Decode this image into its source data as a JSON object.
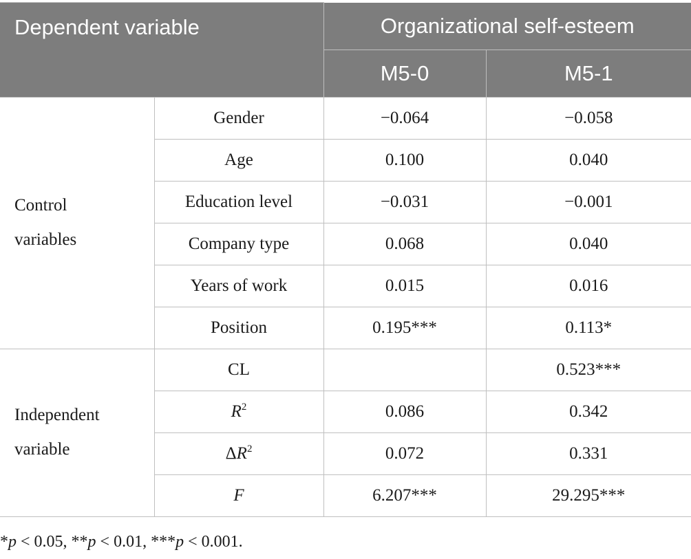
{
  "table": {
    "header": {
      "dependent_label": "Dependent variable",
      "outcome_label": "Organizational self-esteem",
      "model_0": "M5-0",
      "model_1": "M5-1"
    },
    "groups": {
      "control_line1": "Control",
      "control_line2": "variables",
      "independent_line1": "Independent",
      "independent_line2": "variable"
    },
    "rows": [
      {
        "label": "Gender",
        "m0": "−0.064",
        "m1": "−0.058"
      },
      {
        "label": "Age",
        "m0": "0.100",
        "m1": "0.040"
      },
      {
        "label": "Education level",
        "m0": "−0.031",
        "m1": "−0.001"
      },
      {
        "label": "Company type",
        "m0": "0.068",
        "m1": "0.040"
      },
      {
        "label": "Years of work",
        "m0": "0.015",
        "m1": "0.016"
      },
      {
        "label": "Position",
        "m0": "0.195***",
        "m1": "0.113*"
      },
      {
        "label": "CL",
        "m0": "",
        "m1": "0.523***"
      },
      {
        "label_main": "R",
        "label_sup": "2",
        "m0": "0.086",
        "m1": "0.342"
      },
      {
        "label_prefix": "Δ",
        "label_main": "R",
        "label_sup": "2",
        "m0": "0.072",
        "m1": "0.331"
      },
      {
        "label_main": "F",
        "m0": "6.207***",
        "m1": "29.295***"
      }
    ]
  },
  "footnote": {
    "s1": "*",
    "p1": "p",
    "t1": " < 0.05, **",
    "p2": "p",
    "t2": " < 0.01, ***",
    "p3": "p",
    "t3": " < 0.001."
  }
}
